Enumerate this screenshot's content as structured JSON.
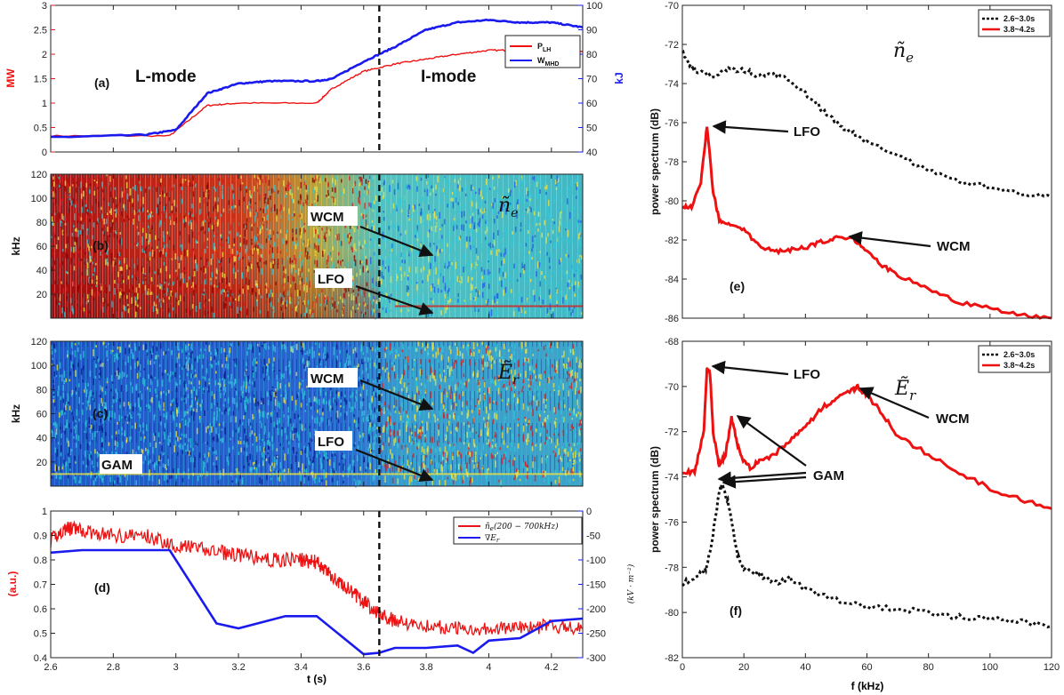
{
  "chart_data": [
    {
      "id": "a",
      "type": "line",
      "panel_label": "(a)",
      "xlim": [
        2.6,
        4.3
      ],
      "ylim": [
        0,
        3
      ],
      "y2lim": [
        40,
        100
      ],
      "ylabel": "MW",
      "y2label": "kJ",
      "xticks": [
        "2.6",
        "2.8",
        "3",
        "3.2",
        "3.4",
        "3.6",
        "3.8",
        "4",
        "4.2"
      ],
      "yticks": [
        "0",
        "0.5",
        "1",
        "1.5",
        "2",
        "2.5",
        "3"
      ],
      "y2ticks": [
        "40",
        "50",
        "60",
        "70",
        "80",
        "90",
        "100"
      ],
      "annotations": [
        "L-mode",
        "I-mode"
      ],
      "series": [
        {
          "name": "P_LH",
          "legend_main": "P",
          "legend_sub": "LH",
          "color": "#ee1111",
          "axis": "left",
          "x": [
            2.6,
            2.98,
            3.1,
            3.2,
            3.45,
            3.5,
            3.6,
            3.7,
            3.8,
            3.9,
            4.0,
            4.1,
            4.2,
            4.3
          ],
          "y": [
            0.33,
            0.33,
            0.95,
            1.0,
            1.0,
            1.3,
            1.65,
            1.8,
            1.9,
            2.0,
            2.08,
            2.08,
            2.05,
            2.05
          ]
        },
        {
          "name": "W_MHD",
          "legend_main": "W",
          "legend_sub": "MHD",
          "color": "#1a1aee",
          "axis": "right",
          "x": [
            2.6,
            2.9,
            3.0,
            3.1,
            3.2,
            3.3,
            3.45,
            3.5,
            3.6,
            3.7,
            3.8,
            3.9,
            4.0,
            4.1,
            4.2,
            4.3
          ],
          "y": [
            46,
            47,
            49,
            64,
            68,
            69,
            69,
            70,
            77,
            83,
            90,
            93,
            94,
            93,
            93,
            91
          ]
        }
      ],
      "vline_x": 3.65
    },
    {
      "id": "b",
      "type": "heatmap",
      "panel_label": "(b)",
      "symbol": "ñ",
      "symbol_sub": "e",
      "colormap": "jet",
      "xlim": [
        2.6,
        4.3
      ],
      "ylim": [
        0,
        120
      ],
      "ylabel": "kHz",
      "yticks": [
        "20",
        "40",
        "60",
        "80",
        "100",
        "120"
      ],
      "annotations": [
        "WCM",
        "LFO"
      ],
      "vline_x": 3.65
    },
    {
      "id": "c",
      "type": "heatmap",
      "panel_label": "(c)",
      "symbol": "Ẽ",
      "symbol_sub": "r",
      "colormap": "jet",
      "xlim": [
        2.6,
        4.3
      ],
      "ylim": [
        0,
        120
      ],
      "ylabel": "kHz",
      "yticks": [
        "20",
        "40",
        "60",
        "80",
        "100",
        "120"
      ],
      "annotations": [
        "WCM",
        "LFO",
        "GAM"
      ],
      "vline_x": 3.65
    },
    {
      "id": "d",
      "type": "line",
      "panel_label": "(d)",
      "xlim": [
        2.6,
        4.3
      ],
      "ylim": [
        0.4,
        1.0
      ],
      "y2lim": [
        -300,
        0
      ],
      "xlabel": "t (s)",
      "ylabel": "(a.u.)",
      "y2label": "(kV · m⁻²)",
      "xticks": [
        "2.6",
        "2.8",
        "3",
        "3.2",
        "3.4",
        "3.6",
        "3.8",
        "4",
        "4.2"
      ],
      "yticks": [
        "0.4",
        "0.5",
        "0.6",
        "0.7",
        "0.8",
        "0.9",
        "1"
      ],
      "y2ticks": [
        "-300",
        "-250",
        "-200",
        "-150",
        "-100",
        "-50",
        "0"
      ],
      "series": [
        {
          "name": "ñe(200-700kHz)",
          "legend_main": "ñ",
          "legend_sub": "e",
          "legend_rest": "(200 − 700kHz)",
          "color": "#ee1111",
          "axis": "left",
          "x": [
            2.6,
            2.65,
            2.7,
            2.8,
            2.9,
            3.0,
            3.1,
            3.2,
            3.3,
            3.4,
            3.45,
            3.5,
            3.55,
            3.6,
            3.65,
            3.7,
            3.8,
            3.9,
            4.0,
            4.1,
            4.2,
            4.3
          ],
          "y": [
            0.88,
            0.93,
            0.92,
            0.9,
            0.9,
            0.86,
            0.84,
            0.82,
            0.8,
            0.8,
            0.79,
            0.73,
            0.68,
            0.63,
            0.58,
            0.55,
            0.53,
            0.52,
            0.52,
            0.52,
            0.53,
            0.52
          ]
        },
        {
          "name": "∇Er",
          "legend_main": "∇E",
          "legend_sub": "r",
          "legend_rest": "",
          "color": "#1a1aee",
          "axis": "right",
          "x": [
            2.6,
            2.7,
            2.98,
            3.13,
            3.2,
            3.35,
            3.45,
            3.6,
            3.65,
            3.7,
            3.8,
            3.9,
            3.95,
            4.0,
            4.1,
            4.2,
            4.3
          ],
          "y": [
            -85,
            -80,
            -80,
            -230,
            -240,
            -215,
            -215,
            -293,
            -290,
            -280,
            -280,
            -275,
            -290,
            -265,
            -260,
            -225,
            -220
          ]
        }
      ],
      "vline_x": 3.65
    },
    {
      "id": "e",
      "type": "line",
      "panel_label": "(e)",
      "symbol": "ñ",
      "symbol_sub": "e",
      "xlim": [
        0,
        120
      ],
      "ylim": [
        -86,
        -70
      ],
      "ylabel": "power spectrum (dB)",
      "yticks": [
        "-86",
        "-84",
        "-82",
        "-80",
        "-78",
        "-76",
        "-74",
        "-72",
        "-70"
      ],
      "annotations": [
        "LFO",
        "WCM"
      ],
      "series": [
        {
          "name": "2.6~3.0s",
          "color": "#111111",
          "dashed": true,
          "x": [
            0,
            2,
            5,
            10,
            15,
            20,
            25,
            30,
            35,
            40,
            45,
            50,
            55,
            60,
            70,
            80,
            90,
            100,
            110,
            120
          ],
          "y": [
            -72.3,
            -73,
            -73.4,
            -73.6,
            -73.3,
            -73.3,
            -73.6,
            -73.5,
            -73.8,
            -74.5,
            -75.3,
            -76,
            -76.5,
            -77,
            -77.7,
            -78.4,
            -79,
            -79.3,
            -79.6,
            -79.8
          ]
        },
        {
          "name": "3.8~4.2s",
          "color": "#ee1111",
          "dashed": false,
          "x": [
            0,
            3,
            6,
            8,
            10,
            12,
            15,
            20,
            25,
            30,
            35,
            40,
            45,
            50,
            55,
            60,
            65,
            70,
            80,
            90,
            100,
            110,
            120
          ],
          "y": [
            -80.3,
            -80.3,
            -79,
            -76.2,
            -79.5,
            -81,
            -81.1,
            -81.5,
            -82.3,
            -82.6,
            -82.5,
            -82.4,
            -82.1,
            -81.9,
            -81.9,
            -82.5,
            -83.3,
            -83.8,
            -84.5,
            -85.2,
            -85.5,
            -85.8,
            -86
          ]
        }
      ]
    },
    {
      "id": "f",
      "type": "line",
      "panel_label": "(f)",
      "symbol": "Ẽ",
      "symbol_sub": "r",
      "xlim": [
        0,
        120
      ],
      "ylim": [
        -82,
        -68
      ],
      "xlabel": "f (kHz)",
      "ylabel": "power spectrum (dB)",
      "xticks": [
        "0",
        "20",
        "40",
        "60",
        "80",
        "100",
        "120"
      ],
      "yticks": [
        "-82",
        "-80",
        "-78",
        "-76",
        "-74",
        "-72",
        "-70",
        "-68"
      ],
      "annotations": [
        "LFO",
        "WCM",
        "GAM"
      ],
      "series": [
        {
          "name": "2.6~3.0s",
          "color": "#111111",
          "dashed": true,
          "x": [
            0,
            5,
            8,
            10,
            12,
            13,
            15,
            18,
            20,
            25,
            30,
            35,
            40,
            50,
            60,
            70,
            80,
            90,
            100,
            110,
            120
          ],
          "y": [
            -78.7,
            -78.4,
            -78,
            -76.5,
            -74.6,
            -74.4,
            -75.2,
            -77.5,
            -78,
            -78.3,
            -78.7,
            -78.5,
            -79,
            -79.4,
            -79.8,
            -79.8,
            -80,
            -80.2,
            -80.3,
            -80.4,
            -80.6
          ]
        },
        {
          "name": "3.8~4.2s",
          "color": "#ee1111",
          "dashed": false,
          "x": [
            0,
            4,
            7,
            8,
            9,
            10,
            12,
            14,
            16,
            18,
            20,
            22,
            25,
            30,
            35,
            40,
            45,
            50,
            55,
            57,
            60,
            65,
            70,
            80,
            90,
            100,
            110,
            120
          ],
          "y": [
            -73.8,
            -73.8,
            -72,
            -69.2,
            -69.4,
            -72,
            -73.5,
            -73,
            -71.4,
            -72.6,
            -73.3,
            -73.6,
            -73.3,
            -73,
            -72.4,
            -71.8,
            -71,
            -70.5,
            -70.2,
            -70,
            -70.4,
            -71.2,
            -72.2,
            -73,
            -73.8,
            -74.5,
            -75,
            -75.4
          ]
        }
      ]
    }
  ],
  "axis_colors": {
    "left_a": "#ee1111",
    "right_a": "#1a1aee"
  },
  "heatmap_colors": {
    "dark": "#8b0000",
    "red": "#d91c1c",
    "yellow": "#f0e442",
    "cyan": "#30c8d8",
    "blue": "#1e5ae6",
    "navy": "#0a1a8c"
  }
}
